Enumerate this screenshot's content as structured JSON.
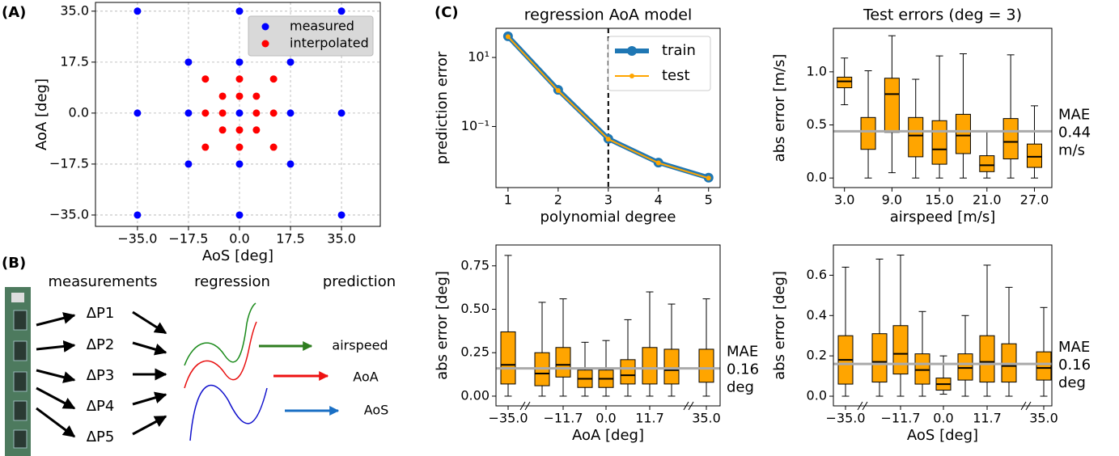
{
  "panel_labels": [
    "(A)",
    "(B)",
    "(C)"
  ],
  "diagram": {
    "headers": [
      "measurements",
      "regression",
      "prediction"
    ],
    "inputs": [
      "ΔP1",
      "ΔP2",
      "ΔP3",
      "ΔP4",
      "ΔP5"
    ],
    "outputs": [
      "airspeed",
      "AoA",
      "AoS"
    ]
  },
  "chart_data": [
    {
      "type": "scatter",
      "x_label": "AoS [deg]",
      "y_label": "AoA [deg]",
      "grid": true,
      "legend": "upper right",
      "xlim": [
        -49.4,
        48.3
      ],
      "ylim": [
        -38.9,
        38
      ],
      "xticks": [
        {
          "value": -35,
          "label": "−35.0"
        },
        {
          "value": -17.5,
          "label": "−17.5"
        },
        {
          "value": 0,
          "label": "0.0"
        },
        17.5,
        {
          "value": 35,
          "label": "35.0"
        }
      ],
      "yticks": [
        {
          "value": 35,
          "label": "35.0"
        },
        17.5,
        {
          "value": 0,
          "label": "0.0"
        },
        {
          "value": -17.5,
          "label": "−17.5"
        },
        {
          "value": -35,
          "label": "−35.0"
        }
      ],
      "series": [
        {
          "name": "measured",
          "color": "#0000ff",
          "x": [
            -35,
            0,
            35,
            -17.5,
            0,
            17.5,
            -35,
            -17.5,
            0,
            17.5,
            35,
            -17.5,
            0,
            17.5,
            -35,
            0,
            35
          ],
          "values": [
            35,
            35,
            35,
            17.5,
            17.5,
            17.5,
            0,
            0,
            0,
            0,
            0,
            -17.5,
            -17.5,
            -17.5,
            -35,
            -35,
            -35
          ]
        },
        {
          "name": "interpolated",
          "color": "#ff0000",
          "x": [
            -11.7,
            0,
            11.7,
            -5.8,
            0,
            5.8,
            -11.7,
            -5.8,
            5.8,
            11.7,
            -5.8,
            0,
            5.8,
            -11.7,
            0,
            11.7
          ],
          "values": [
            11.7,
            11.7,
            11.7,
            5.8,
            5.8,
            5.8,
            0,
            0,
            0,
            0,
            -5.8,
            -5.8,
            -5.8,
            -11.7,
            -11.7,
            -11.7
          ]
        }
      ]
    },
    {
      "type": "line",
      "title": "regression AoA model",
      "x_label": "polynomial degree",
      "y_label": "prediction error",
      "ylog": true,
      "legend": "upper right",
      "vline_x": 3,
      "x": [
        1,
        2,
        3,
        4,
        5
      ],
      "xlim": [
        0.76,
        5.23
      ],
      "xticks": [
        1,
        2,
        3,
        4,
        5
      ],
      "ylim": [
        0.0017,
        70
      ],
      "yticks": [
        {
          "value": 10,
          "label": "10¹"
        },
        {
          "value": 0.1,
          "label": "10⁻¹"
        }
      ],
      "series": [
        {
          "name": "train",
          "color": "#1f77b4",
          "values": [
            41,
            1.15,
            0.044,
            0.009,
            0.0033
          ]
        },
        {
          "name": "test",
          "color": "#ffa500",
          "values": [
            40,
            1.1,
            0.043,
            0.0088,
            0.0032
          ]
        }
      ]
    },
    {
      "type": "box",
      "title": "Test errors (deg = 3)",
      "x_label": "airspeed [m/s]",
      "y_label": "abs error [m/s]",
      "color": "#ffa500",
      "x": [
        3,
        6,
        9,
        12,
        15,
        18,
        21,
        24,
        27
      ],
      "xlim": [
        1.6,
        29.2
      ],
      "xticks": [
        {
          "value": 3,
          "label": "3.0"
        },
        {
          "value": 9,
          "label": "9.0"
        },
        {
          "value": 15,
          "label": "15.0"
        },
        {
          "value": 21,
          "label": "21.0"
        },
        {
          "value": 27,
          "label": "27.0"
        }
      ],
      "ylim": [
        -0.09,
        1.41
      ],
      "yticks": [
        {
          "value": 0,
          "label": "0.0"
        },
        0.5,
        {
          "value": 1,
          "label": "1.0"
        }
      ],
      "mae": {
        "value": 0.44,
        "labels": [
          "MAE",
          "0.44",
          "m/s"
        ]
      },
      "boxes": [
        {
          "whislo": 0.69,
          "q1": 0.85,
          "med": 0.91,
          "q3": 0.95,
          "whishi": 1.13
        },
        {
          "whislo": 0,
          "q1": 0.27,
          "med": 0.44,
          "q3": 0.57,
          "whishi": 1.01
        },
        {
          "whislo": 0.05,
          "q1": 0.43,
          "med": 0.79,
          "q3": 0.94,
          "whishi": 1.34
        },
        {
          "whislo": 0,
          "q1": 0.2,
          "med": 0.4,
          "q3": 0.57,
          "whishi": 0.93
        },
        {
          "whislo": 0,
          "q1": 0.13,
          "med": 0.27,
          "q3": 0.54,
          "whishi": 1.15
        },
        {
          "whislo": 0,
          "q1": 0.23,
          "med": 0.4,
          "q3": 0.6,
          "whishi": 1.17
        },
        {
          "whislo": 0,
          "q1": 0.06,
          "med": 0.12,
          "q3": 0.21,
          "whishi": 0.44
        },
        {
          "whislo": 0,
          "q1": 0.18,
          "med": 0.34,
          "q3": 0.56,
          "whishi": 1.16
        },
        {
          "whislo": 0,
          "q1": 0.1,
          "med": 0.2,
          "q3": 0.32,
          "whishi": 0.68
        }
      ]
    },
    {
      "type": "box",
      "x_label": "AoA [deg]",
      "y_label": "abs error [deg]",
      "color": "#ffa500",
      "categories": [
        "−35.0",
        null,
        "−11.7",
        null,
        "0.0",
        null,
        "11.7",
        null,
        "35.0"
      ],
      "ylim": [
        -0.056,
        0.87
      ],
      "yticks": [
        {
          "value": 0,
          "label": "0.00"
        },
        0.25,
        {
          "value": 0.5,
          "label": "0.50"
        },
        0.75
      ],
      "mae": {
        "value": 0.16,
        "labels": [
          "MAE",
          "0.16",
          "deg"
        ]
      },
      "boxes": [
        {
          "whislo": 0,
          "q1": 0.07,
          "med": 0.18,
          "q3": 0.37,
          "whishi": 0.81
        },
        {
          "whislo": 0,
          "q1": 0.06,
          "med": 0.13,
          "q3": 0.25,
          "whishi": 0.54
        },
        {
          "whislo": 0,
          "q1": 0.11,
          "med": 0.18,
          "q3": 0.28,
          "whishi": 0.56
        },
        {
          "whislo": 0,
          "q1": 0.05,
          "med": 0.1,
          "q3": 0.15,
          "whishi": 0.31
        },
        {
          "whislo": 0,
          "q1": 0.05,
          "med": 0.1,
          "q3": 0.15,
          "whishi": 0.32
        },
        {
          "whislo": 0,
          "q1": 0.07,
          "med": 0.12,
          "q3": 0.21,
          "whishi": 0.44
        },
        {
          "whislo": 0,
          "q1": 0.07,
          "med": 0.16,
          "q3": 0.28,
          "whishi": 0.6
        },
        {
          "whislo": 0,
          "q1": 0.07,
          "med": 0.15,
          "q3": 0.27,
          "whishi": 0.53
        },
        {
          "whislo": 0,
          "q1": 0.08,
          "med": 0.16,
          "q3": 0.27,
          "whishi": 0.56
        }
      ]
    },
    {
      "type": "box",
      "x_label": "AoS [deg]",
      "y_label": "abs error [deg]",
      "color": "#ffa500",
      "categories": [
        "−35.0",
        null,
        "−11.7",
        null,
        "0.0",
        null,
        "11.7",
        null,
        "35.0"
      ],
      "ylim": [
        -0.048,
        0.75
      ],
      "yticks": [
        {
          "value": 0,
          "label": "0.0"
        },
        0.2,
        0.4,
        0.6
      ],
      "mae": {
        "value": 0.16,
        "labels": [
          "MAE",
          "0.16",
          "deg"
        ]
      },
      "boxes": [
        {
          "whislo": 0,
          "q1": 0.06,
          "med": 0.18,
          "q3": 0.3,
          "whishi": 0.64
        },
        {
          "whislo": 0,
          "q1": 0.07,
          "med": 0.17,
          "q3": 0.31,
          "whishi": 0.68
        },
        {
          "whislo": 0,
          "q1": 0.11,
          "med": 0.21,
          "q3": 0.35,
          "whishi": 0.7
        },
        {
          "whislo": 0,
          "q1": 0.06,
          "med": 0.13,
          "q3": 0.21,
          "whishi": 0.42
        },
        {
          "whislo": 0.01,
          "q1": 0.03,
          "med": 0.06,
          "q3": 0.09,
          "whishi": 0.2
        },
        {
          "whislo": 0,
          "q1": 0.08,
          "med": 0.14,
          "q3": 0.21,
          "whishi": 0.4
        },
        {
          "whislo": 0,
          "q1": 0.07,
          "med": 0.17,
          "q3": 0.3,
          "whishi": 0.65
        },
        {
          "whislo": 0,
          "q1": 0.07,
          "med": 0.15,
          "q3": 0.26,
          "whishi": 0.54
        },
        {
          "whislo": 0,
          "q1": 0.08,
          "med": 0.14,
          "q3": 0.22,
          "whishi": 0.44
        }
      ]
    }
  ]
}
